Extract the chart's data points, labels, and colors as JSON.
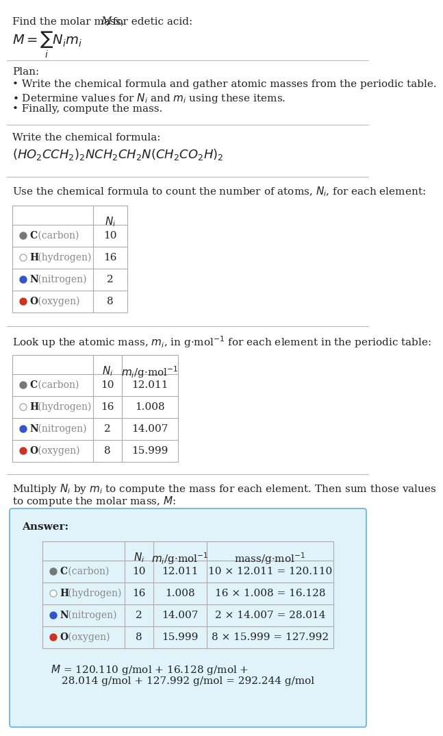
{
  "title_text": "Find the molar mass, M, for edetic acid:",
  "plan_header": "Plan:",
  "plan_bullets": [
    "• Write the chemical formula and gather atomic masses from the periodic table.",
    "• Determine values for Ni and mi using these items.",
    "• Finally, compute the mass."
  ],
  "formula_header": "Write the chemical formula:",
  "chemical_formula": "(HO₂CCH₂)₂NCH₂CH₂N(CH₂CO₂H)₂",
  "count_header": "Use the chemical formula to count the number of atoms, Ni, for each element:",
  "lookup_header": "Look up the atomic mass, mi, in g·mol⁻¹ for each element in the periodic table:",
  "multiply_header1": "Multiply Ni by mi to compute the mass for each element. Then sum those values",
  "multiply_header2": "to compute the molar mass, M:",
  "element_symbols": [
    "C",
    "H",
    "N",
    "O"
  ],
  "element_names": [
    "(carbon)",
    "(hydrogen)",
    "(nitrogen)",
    "(oxygen)"
  ],
  "dot_colors": [
    "#777777",
    "#ffffff",
    "#3355cc",
    "#cc3322"
  ],
  "dot_outlines": [
    "#777777",
    "#aaaaaa",
    "#3355cc",
    "#cc3322"
  ],
  "Ni": [
    10,
    16,
    2,
    8
  ],
  "mi_strs": [
    "12.011",
    "1.008",
    "14.007",
    "15.999"
  ],
  "mass_strs": [
    "10 × 12.011 = 120.110",
    "16 × 1.008 = 16.128",
    "2 × 14.007 = 28.014",
    "8 × 15.999 = 127.992"
  ],
  "answer_label": "Answer:",
  "final_eq_line1": "M = 120.110 g/mol + 16.128 g/mol +",
  "final_eq_line2": "28.014 g/mol + 127.992 g/mol = 292.244 g/mol",
  "bg_color": "#ffffff",
  "answer_bg": "#e0f2fa",
  "answer_border": "#7bbcda",
  "text_color": "#222222",
  "gray_text": "#888888",
  "line_color": "#bbbbbb",
  "table_line_color": "#aaaaaa"
}
